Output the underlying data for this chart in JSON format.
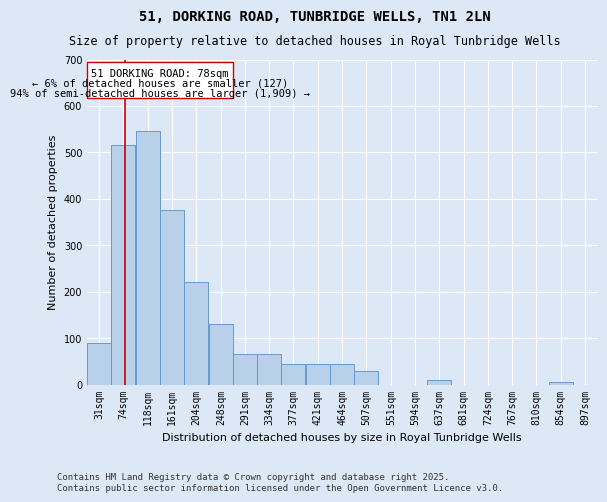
{
  "title": "51, DORKING ROAD, TUNBRIDGE WELLS, TN1 2LN",
  "subtitle": "Size of property relative to detached houses in Royal Tunbridge Wells",
  "xlabel": "Distribution of detached houses by size in Royal Tunbridge Wells",
  "ylabel": "Number of detached properties",
  "categories": [
    "31sqm",
    "74sqm",
    "118sqm",
    "161sqm",
    "204sqm",
    "248sqm",
    "291sqm",
    "334sqm",
    "377sqm",
    "421sqm",
    "464sqm",
    "507sqm",
    "551sqm",
    "594sqm",
    "637sqm",
    "681sqm",
    "724sqm",
    "767sqm",
    "810sqm",
    "854sqm",
    "897sqm"
  ],
  "values": [
    90,
    515,
    545,
    375,
    220,
    130,
    65,
    65,
    45,
    45,
    45,
    30,
    0,
    0,
    10,
    0,
    0,
    0,
    0,
    5,
    0
  ],
  "bar_color": "#b8d0ea",
  "bar_edge_color": "#6699cc",
  "background_color": "#dce8f5",
  "grid_color": "#ffffff",
  "annotation_box_color": "#ffffff",
  "annotation_box_edge": "#cc0000",
  "annotation_text_line1": "51 DORKING ROAD: 78sqm",
  "annotation_text_line2": "← 6% of detached houses are smaller (127)",
  "annotation_text_line3": "94% of semi-detached houses are larger (1,909) →",
  "property_line_x": 78,
  "property_line_color": "#cc0000",
  "ylim": [
    0,
    700
  ],
  "yticks": [
    0,
    100,
    200,
    300,
    400,
    500,
    600,
    700
  ],
  "footnote_line1": "Contains HM Land Registry data © Crown copyright and database right 2025.",
  "footnote_line2": "Contains public sector information licensed under the Open Government Licence v3.0.",
  "title_fontsize": 10,
  "subtitle_fontsize": 8.5,
  "xlabel_fontsize": 8,
  "ylabel_fontsize": 8,
  "tick_fontsize": 7,
  "annotation_fontsize": 7.5,
  "footnote_fontsize": 6.5,
  "bin_centers": [
    31,
    74,
    118,
    161,
    204,
    248,
    291,
    334,
    377,
    421,
    464,
    507,
    551,
    594,
    637,
    681,
    724,
    767,
    810,
    854,
    897
  ]
}
